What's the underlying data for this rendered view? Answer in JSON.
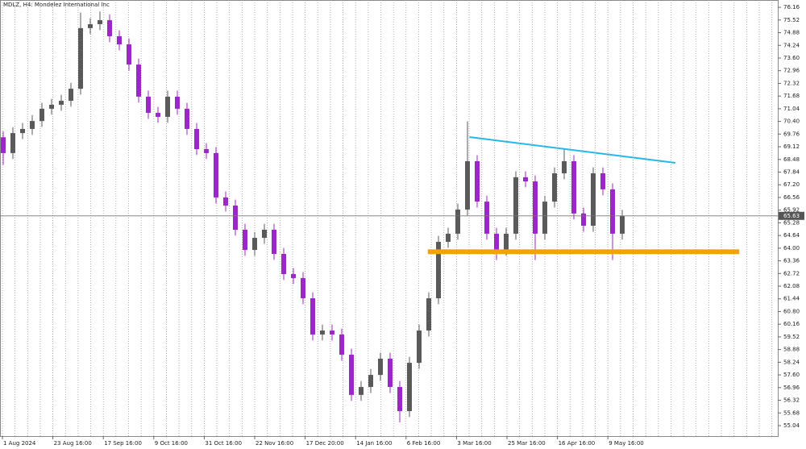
{
  "chart_data": {
    "type": "candlestick",
    "title": "MDLZ, H4:  Mondelez International Inc",
    "x_labels": [
      "1 Aug 2024",
      "23 Aug 16:00",
      "17 Sep 16:00",
      "9 Oct 16:00",
      "31 Oct 16:00",
      "22 Nov 16:00",
      "17 Dec 20:00",
      "14 Jan 16:00",
      "6 Feb 16:00",
      "3 Mar 16:00",
      "25 Mar 16:00",
      "16 Apr 16:00",
      "9 May 16:00"
    ],
    "open": [
      69.6,
      68.8,
      69.81,
      70.02,
      70.42,
      71.04,
      71.24,
      71.44,
      72.05,
      75.11,
      75.31,
      75.51,
      74.7,
      74.29,
      73.27,
      71.65,
      70.83,
      70.63,
      71.65,
      71.04,
      70.02,
      69.0,
      68.8,
      66.56,
      66.15,
      64.93,
      63.91,
      64.52,
      64.93,
      63.71,
      62.69,
      62.49,
      61.47,
      59.64,
      59.84,
      59.64,
      58.62,
      56.59,
      56.99,
      57.6,
      58.42,
      56.99,
      55.77,
      58.21,
      59.84,
      61.47,
      64.32,
      64.73,
      65.95,
      68.39,
      66.35,
      64.73,
      63.91,
      64.73,
      67.58,
      67.37,
      64.73,
      66.35,
      67.78,
      68.39,
      65.75,
      65.13,
      67.78,
      66.97,
      64.73
    ],
    "high": [
      69.9,
      70.11,
      70.32,
      70.72,
      71.34,
      71.54,
      71.74,
      72.35,
      75.9,
      75.61,
      75.95,
      75.81,
      75.0,
      74.59,
      73.57,
      71.95,
      71.13,
      71.95,
      71.95,
      71.34,
      70.32,
      69.3,
      69.1,
      66.86,
      66.45,
      65.23,
      64.82,
      65.23,
      65.23,
      64.01,
      62.99,
      62.79,
      61.77,
      60.14,
      60.14,
      59.94,
      58.92,
      57.29,
      57.9,
      58.72,
      58.72,
      57.29,
      58.51,
      60.14,
      61.77,
      64.62,
      65.03,
      66.25,
      70.4,
      68.69,
      66.65,
      65.03,
      65.03,
      67.88,
      67.88,
      67.67,
      66.65,
      68.08,
      69.0,
      68.69,
      66.05,
      68.08,
      68.08,
      67.27,
      65.93
    ],
    "low": [
      68.2,
      68.5,
      69.51,
      69.72,
      70.12,
      70.74,
      70.94,
      71.14,
      71.75,
      74.81,
      75.01,
      74.4,
      73.99,
      72.97,
      71.35,
      70.53,
      70.33,
      70.33,
      70.74,
      69.72,
      68.7,
      68.5,
      66.26,
      65.85,
      64.63,
      63.61,
      63.61,
      64.22,
      63.41,
      62.39,
      62.19,
      61.17,
      59.34,
      59.34,
      59.34,
      58.32,
      56.29,
      56.29,
      56.69,
      57.3,
      56.69,
      55.2,
      55.47,
      57.91,
      59.54,
      61.17,
      64.02,
      64.43,
      65.65,
      66.05,
      64.43,
      63.4,
      63.61,
      64.43,
      67.07,
      63.4,
      64.43,
      66.05,
      67.48,
      65.45,
      64.83,
      64.83,
      66.67,
      63.4,
      64.43
    ],
    "close": [
      68.8,
      69.81,
      70.02,
      70.42,
      71.04,
      71.24,
      71.44,
      72.05,
      75.11,
      75.31,
      75.51,
      74.7,
      74.29,
      73.27,
      71.65,
      70.83,
      70.63,
      71.65,
      71.04,
      70.02,
      69.0,
      68.8,
      66.56,
      66.15,
      64.93,
      63.91,
      64.52,
      64.93,
      63.71,
      62.69,
      62.49,
      61.47,
      59.64,
      59.84,
      59.64,
      58.62,
      56.59,
      56.99,
      57.6,
      58.42,
      56.99,
      55.77,
      58.21,
      59.84,
      61.47,
      64.32,
      64.73,
      65.95,
      68.39,
      66.35,
      64.73,
      63.91,
      64.73,
      67.58,
      67.37,
      64.73,
      66.35,
      67.78,
      68.39,
      65.75,
      65.13,
      67.78,
      66.97,
      64.73,
      65.63
    ],
    "up_color": "#5a5a5a",
    "down_color": "#9c27c9",
    "current_price": 65.63,
    "ylim": [
      54.51,
      76.53
    ],
    "yticks": [
      76.16,
      75.52,
      74.88,
      74.24,
      {
        "value": 73.6,
        "label": "73.60"
      },
      72.96,
      72.32,
      71.68,
      71.04,
      {
        "value": 70.4,
        "label": "70.40"
      },
      69.76,
      69.12,
      68.48,
      67.84,
      {
        "value": 67.2,
        "label": "67.20"
      },
      66.56,
      65.92,
      65.28,
      64.64,
      {
        "value": 64,
        "label": "64.00"
      },
      63.36,
      62.72,
      62.08,
      61.44,
      {
        "value": 60.8,
        "label": "60.80"
      },
      60.16,
      59.52,
      58.88,
      58.24,
      {
        "value": 57.6,
        "label": "57.60"
      },
      56.96,
      56.32,
      55.68,
      55.04
    ],
    "trendline": {
      "x": [
        48.2,
        69.5
      ],
      "y": [
        69.61,
        68.31
      ],
      "color": "#29b6e8"
    },
    "support_zone": {
      "x": [
        43.9,
        76.1
      ],
      "y": [
        63.7,
        63.94
      ],
      "color": "#f5a00f"
    },
    "grid": true
  }
}
